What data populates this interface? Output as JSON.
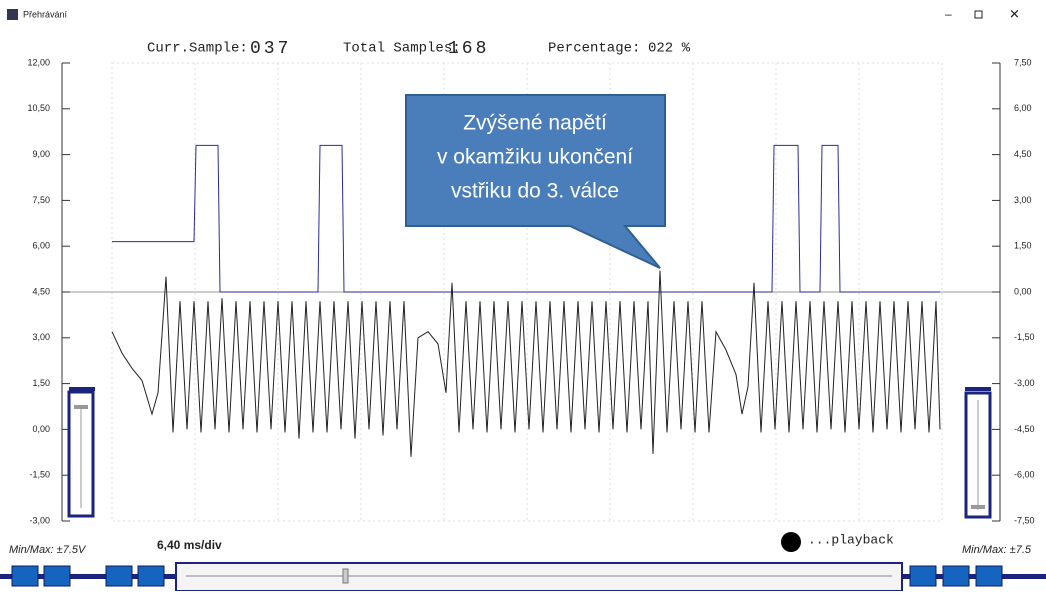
{
  "window": {
    "title": "Přehrávání",
    "curr_label": "Curr.Sample:",
    "curr_value": "037",
    "total_label": "Total Samples:",
    "total_value": "168",
    "pct_label": "Percentage:",
    "pct_value": "022 %",
    "minmax_left": "Min/Max: ±7.5V",
    "timebase": "6,40 ms/div",
    "playback": "...playback",
    "minmax_right": "Min/Max: ±7.5"
  },
  "chart_data": {
    "type": "line",
    "annotation": [
      "Zvýšené napětí",
      "v okamžiku ukončení",
      "vstřiku do 3. válce"
    ],
    "ylim": [
      -3,
      12
    ],
    "yticks": [
      {
        "value": 12,
        "label": "12,00"
      },
      {
        "value": 10.5,
        "label": "10,50"
      },
      {
        "value": 9,
        "label": "9,00"
      },
      {
        "value": 7.5,
        "label": "7,50"
      },
      {
        "value": 6,
        "label": "6,00"
      },
      {
        "value": 4.5,
        "label": "4,50"
      },
      {
        "value": 3,
        "label": "3,00"
      },
      {
        "value": 1.5,
        "label": "1,50"
      },
      {
        "value": 0,
        "label": "0,00"
      },
      {
        "value": -1.5,
        "label": "-1,50"
      },
      {
        "value": -3,
        "label": "-3,00"
      }
    ],
    "y2lim": [
      -7.5,
      7.5
    ],
    "y2ticks": [
      {
        "value": 7.5,
        "label": "7,50"
      },
      {
        "value": 6,
        "label": "6,00"
      },
      {
        "value": 4.5,
        "label": "4,50"
      },
      {
        "value": 3,
        "label": "3,00"
      },
      {
        "value": 1.5,
        "label": "1,50"
      },
      {
        "value": 0,
        "label": "0,00"
      },
      {
        "value": -1.5,
        "label": "-1,50"
      },
      {
        "value": -3,
        "label": "-3,00"
      },
      {
        "value": -4.5,
        "label": "-4,50"
      },
      {
        "value": -6,
        "label": "-6,00"
      },
      {
        "value": -7.5,
        "label": "-7,50"
      }
    ],
    "xlim": [
      0,
      830
    ],
    "series": [
      {
        "color": "#2b2b9a",
        "axis": "y2",
        "x": [
          0,
          82,
          84,
          106,
          108,
          206,
          208,
          230,
          232,
          660,
          662,
          686,
          688,
          708,
          710,
          726,
          728,
          828
        ],
        "values": [
          1.65,
          1.65,
          4.8,
          4.8,
          0,
          0,
          4.8,
          4.8,
          0,
          0,
          4.8,
          4.8,
          0,
          0,
          4.8,
          4.8,
          0,
          0
        ]
      },
      {
        "color": "#222222",
        "x": [
          0,
          10,
          20,
          30,
          40,
          46,
          54,
          61,
          68,
          75,
          82,
          89,
          96,
          103,
          110,
          117,
          124,
          131,
          138,
          145,
          152,
          159,
          166,
          173,
          180,
          187,
          194,
          201,
          208,
          215,
          222,
          229,
          236,
          243,
          250,
          257,
          264,
          271,
          278,
          285,
          292,
          299,
          306,
          316,
          326,
          334,
          340,
          347,
          354,
          361,
          368,
          375,
          382,
          389,
          396,
          403,
          410,
          417,
          424,
          431,
          438,
          445,
          452,
          459,
          466,
          473,
          480,
          487,
          494,
          501,
          508,
          515,
          522,
          529,
          536,
          541,
          548,
          555,
          562,
          569,
          576,
          583,
          590,
          597,
          604,
          614,
          624,
          630,
          636,
          642,
          649,
          656,
          663,
          670,
          677,
          684,
          691,
          698,
          705,
          712,
          719,
          726,
          733,
          740,
          747,
          754,
          761,
          768,
          775,
          782,
          789,
          796,
          803,
          810,
          817,
          824,
          828
        ],
        "values": [
          3.2,
          2.5,
          2.0,
          1.6,
          0.5,
          1.2,
          5.0,
          -0.1,
          4.2,
          0.0,
          4.2,
          -0.1,
          4.2,
          0.0,
          4.3,
          -0.1,
          4.2,
          0.0,
          4.2,
          -0.1,
          4.2,
          0.0,
          4.2,
          -0.1,
          4.2,
          -0.3,
          4.2,
          -0.1,
          4.2,
          -0.1,
          4.2,
          0.0,
          4.2,
          -0.3,
          4.2,
          0.0,
          4.2,
          -0.2,
          4.2,
          0.0,
          4.2,
          -0.9,
          3.0,
          3.2,
          2.8,
          1.2,
          4.8,
          -0.1,
          4.2,
          0.0,
          4.2,
          -0.1,
          4.2,
          0.0,
          4.2,
          -0.1,
          4.2,
          0.0,
          4.2,
          -0.1,
          4.2,
          0.0,
          4.2,
          -0.1,
          4.2,
          0.0,
          4.2,
          -0.1,
          4.2,
          0.0,
          4.2,
          -0.1,
          4.2,
          0.0,
          4.2,
          -0.8,
          5.2,
          -0.1,
          4.2,
          0.0,
          4.2,
          -0.1,
          4.2,
          -0.1,
          3.2,
          2.6,
          1.8,
          0.5,
          1.4,
          4.8,
          -0.1,
          4.2,
          0.0,
          4.2,
          -0.1,
          4.2,
          0.0,
          4.2,
          -0.1,
          4.2,
          0.0,
          4.2,
          -0.1,
          4.2,
          0.0,
          4.2,
          -0.1,
          4.2,
          0.0,
          4.2,
          -0.1,
          4.2,
          0.0,
          4.2,
          -0.1,
          4.2,
          0.0
        ]
      }
    ]
  }
}
